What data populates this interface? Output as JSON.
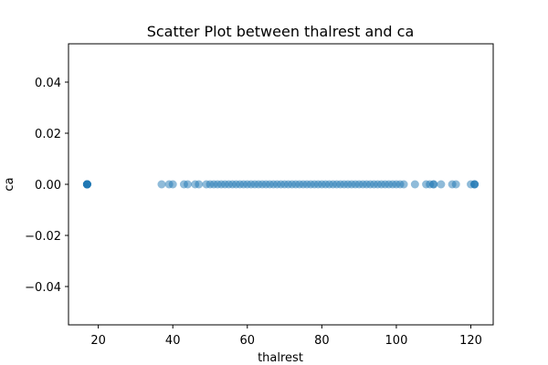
{
  "chart_data": {
    "type": "scatter",
    "title": "Scatter Plot between thalrest and ca",
    "xlabel": "thalrest",
    "ylabel": "ca",
    "xlim": [
      12,
      126
    ],
    "ylim": [
      -0.055,
      0.055
    ],
    "xticks": [
      "20",
      "40",
      "60",
      "80",
      "100",
      "120"
    ],
    "xtick_values": [
      20,
      40,
      60,
      80,
      100,
      120
    ],
    "yticks": [
      "−0.04",
      "−0.02",
      "0.00",
      "0.02",
      "0.04"
    ],
    "ytick_values": [
      -0.04,
      -0.02,
      0.0,
      0.02,
      0.04
    ],
    "grid": false,
    "marker_color": "#1f77b4",
    "marker_alpha": 0.5,
    "series": [
      {
        "x": [
          17,
          17,
          17,
          17,
          17,
          17,
          17,
          17,
          37,
          39,
          40,
          43,
          44,
          46,
          47,
          49,
          50,
          51,
          52,
          53,
          54,
          55,
          56,
          57,
          58,
          59,
          60,
          61,
          62,
          63,
          64,
          65,
          66,
          67,
          68,
          69,
          70,
          71,
          72,
          73,
          74,
          75,
          76,
          77,
          78,
          79,
          80,
          81,
          82,
          83,
          84,
          85,
          86,
          87,
          88,
          89,
          90,
          91,
          92,
          93,
          94,
          95,
          96,
          97,
          98,
          99,
          100,
          101,
          102,
          105,
          108,
          109,
          110,
          110,
          112,
          115,
          116,
          120,
          121,
          121,
          121
        ],
        "y": [
          0,
          0,
          0,
          0,
          0,
          0,
          0,
          0,
          0,
          0,
          0,
          0,
          0,
          0,
          0,
          0,
          0,
          0,
          0,
          0,
          0,
          0,
          0,
          0,
          0,
          0,
          0,
          0,
          0,
          0,
          0,
          0,
          0,
          0,
          0,
          0,
          0,
          0,
          0,
          0,
          0,
          0,
          0,
          0,
          0,
          0,
          0,
          0,
          0,
          0,
          0,
          0,
          0,
          0,
          0,
          0,
          0,
          0,
          0,
          0,
          0,
          0,
          0,
          0,
          0,
          0,
          0,
          0,
          0,
          0,
          0,
          0,
          0,
          0,
          0,
          0,
          0,
          0,
          0,
          0,
          0
        ]
      }
    ]
  }
}
